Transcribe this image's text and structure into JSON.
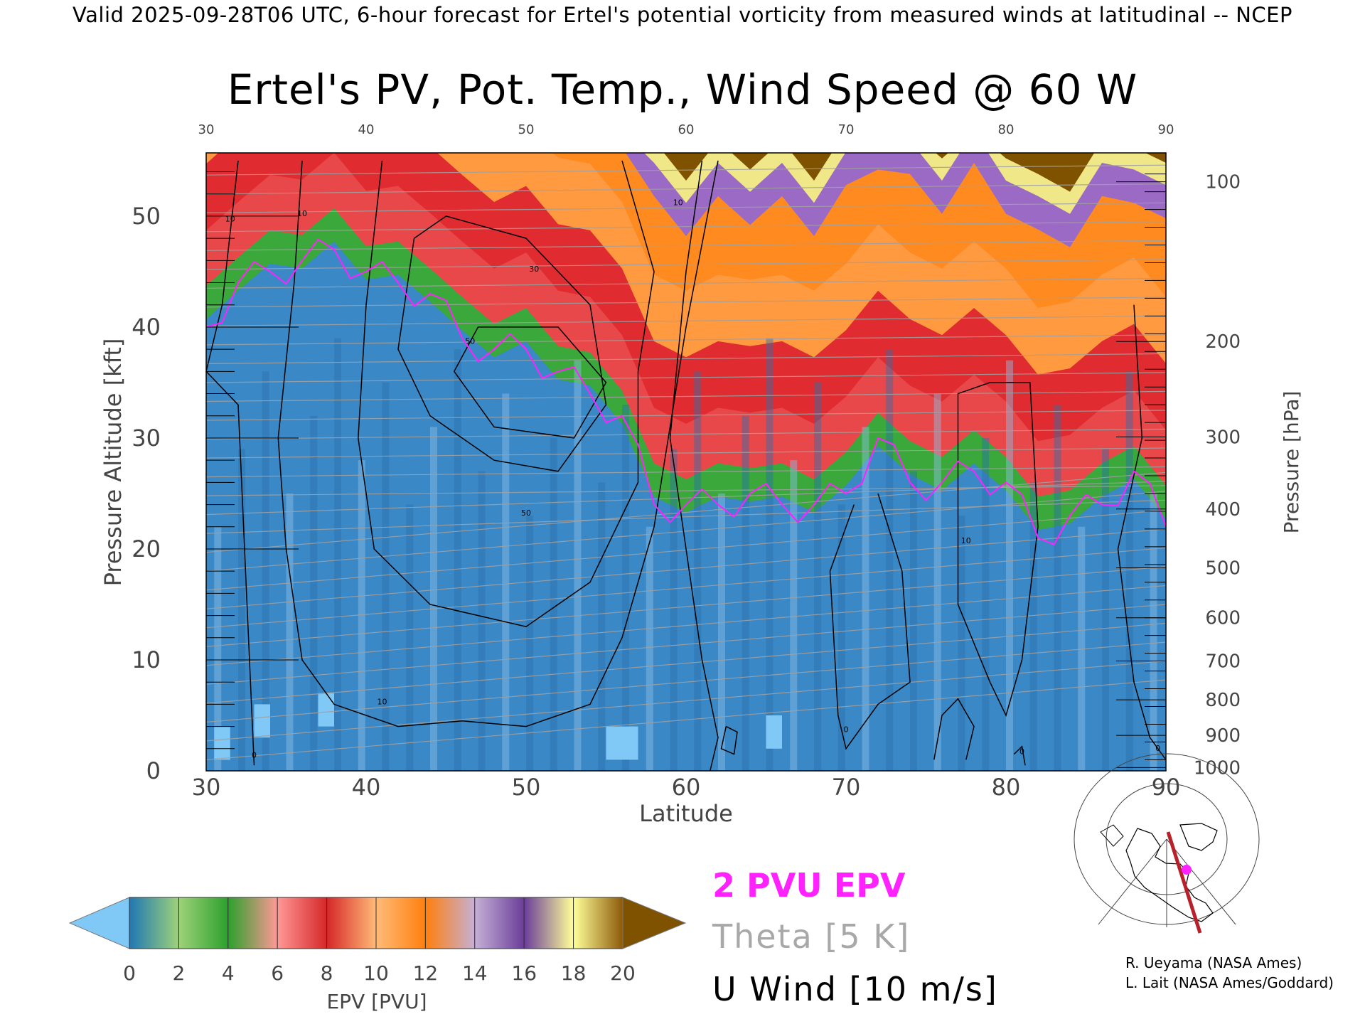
{
  "header": "Valid 2025-09-28T06 UTC, 6-hour forecast for Ertel's potential vorticity from measured winds at latitudinal -- NCEP",
  "chart_data": {
    "type": "heatmap",
    "title": "Ertel's PV, Pot. Temp., Wind Speed @ 60 W",
    "xlabel": "Latitude",
    "ylabel": "Pressure Altitude [kft]",
    "y2label": "Pressure [hPa]",
    "xlim": [
      30,
      90
    ],
    "ylim": [
      0,
      55.7
    ],
    "x_ticks": [
      30,
      40,
      50,
      60,
      70,
      80,
      90
    ],
    "x_tick_labels": [
      "30",
      "40",
      "50",
      "60",
      "70",
      "80",
      "90"
    ],
    "y_ticks": [
      0,
      10,
      20,
      30,
      40,
      50
    ],
    "y_tick_labels": [
      "0",
      "10",
      "20",
      "30",
      "40",
      "50"
    ],
    "pressure_ticks": [
      {
        "label": "100",
        "kft": 53.1
      },
      {
        "label": "200",
        "kft": 38.7
      },
      {
        "label": "300",
        "kft": 30.1
      },
      {
        "label": "400",
        "kft": 23.6
      },
      {
        "label": "500",
        "kft": 18.3
      },
      {
        "label": "600",
        "kft": 13.8
      },
      {
        "label": "700",
        "kft": 9.9
      },
      {
        "label": "800",
        "kft": 6.4
      },
      {
        "label": "900",
        "kft": 3.2
      },
      {
        "label": "1000",
        "kft": 0.3
      }
    ],
    "colorbar": {
      "label": "EPV [PVU]",
      "ticks": [
        "0",
        "2",
        "4",
        "6",
        "8",
        "10",
        "12",
        "14",
        "16",
        "18",
        "20"
      ],
      "colors": [
        "#1f77b4",
        "#9ed27a",
        "#2ca02c",
        "#ff9896",
        "#d62728",
        "#ffbb78",
        "#ff7f0e",
        "#c5b0d5",
        "#6a3d9a",
        "#ffff99",
        "#8c5a0a"
      ],
      "under_color": "#80c8f5",
      "over_color": "#7f5200"
    },
    "x": [
      30,
      32,
      34,
      36,
      38,
      40,
      42,
      44,
      46,
      48,
      50,
      52,
      54,
      56,
      58,
      60,
      62,
      64,
      66,
      68,
      70,
      72,
      74,
      76,
      78,
      80,
      82,
      84,
      86,
      88,
      90
    ],
    "tropopause_2pvu_kft": [
      40,
      44,
      45,
      46,
      47,
      45,
      44,
      43,
      39,
      38,
      38,
      36,
      34,
      32,
      24,
      24,
      24,
      25,
      24,
      24,
      25,
      30,
      26,
      26,
      27,
      26,
      21,
      23,
      24,
      27,
      22
    ],
    "series": [
      {
        "name": "2 PVU EPV",
        "color": "#ff22ff"
      },
      {
        "name": "Theta [5 K]",
        "color": "#a8a8a8"
      },
      {
        "name": "U Wind [10 m/s]",
        "color": "#000000"
      }
    ],
    "contour_labels": [
      "10",
      "30",
      "50",
      "0"
    ],
    "inset_map": "north-polar-projection-with-cross-section-line"
  },
  "legend": {
    "pv": "2 PVU EPV",
    "theta": "Theta [5 K]",
    "u": "U Wind [10 m/s]"
  },
  "credits": [
    "R. Ueyama (NASA Ames)",
    "L. Lait (NASA Ames/Goddard)"
  ],
  "colors": {
    "pv_line": "#ff22ff",
    "theta_line": "#a8a8a8",
    "wind_line": "#000000"
  }
}
